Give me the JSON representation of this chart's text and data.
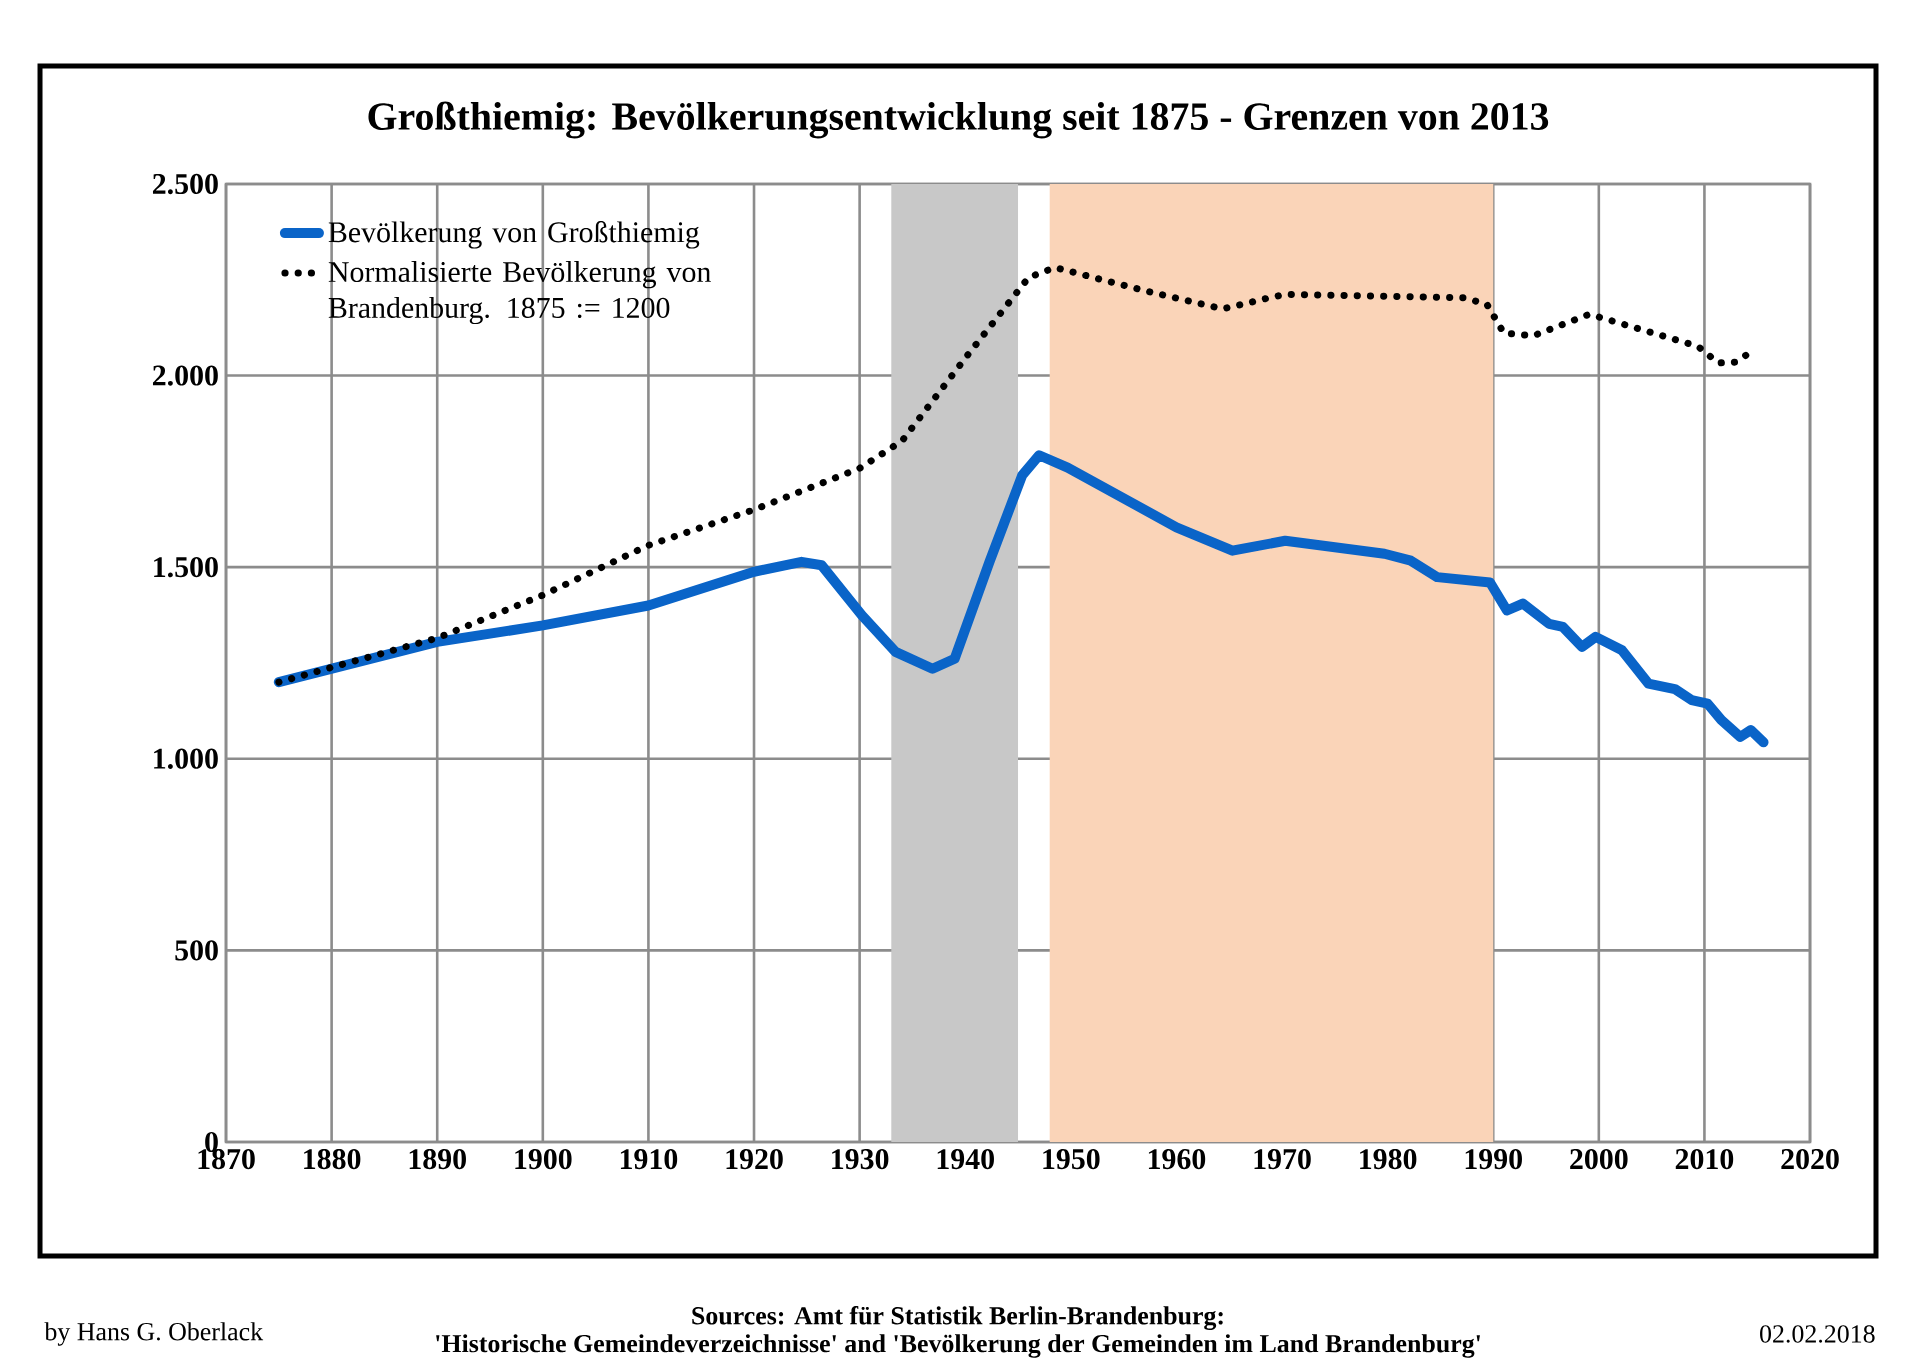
{
  "chart_data": {
    "type": "line",
    "title": "Großthiemig: Bevölkerungsentwicklung seit 1875 - Grenzen von 2013",
    "xlim": [
      1870,
      2020
    ],
    "xticks": [
      1870,
      1880,
      1890,
      1900,
      1910,
      1920,
      1930,
      1940,
      1950,
      1960,
      1970,
      1980,
      1990,
      2000,
      2010,
      2020
    ],
    "ylim": [
      0,
      2500
    ],
    "yticks": [
      {
        "value": 0,
        "label": "0"
      },
      {
        "value": 500,
        "label": "500"
      },
      {
        "value": 1000,
        "label": "1.000"
      },
      {
        "value": 1500,
        "label": "1.500"
      },
      {
        "value": 2000,
        "label": "2.000"
      },
      {
        "value": 2500,
        "label": "2.500"
      }
    ],
    "grid": true,
    "legend": "top left",
    "bands": [
      {
        "axis": "x",
        "from": 1933,
        "to": 1945,
        "color": "#c8c8c8"
      },
      {
        "axis": "x",
        "from": 1948,
        "to": 1990,
        "color": "#fad4b8"
      }
    ],
    "series": [
      {
        "name": "Bevölkerung von Großthiemig",
        "color": "#0a64c8",
        "line_style": "solid",
        "x": [
          1875,
          1890,
          1900,
          1910,
          1920,
          1924.5,
          1926.4,
          1930.2,
          1933.4,
          1936.9,
          1939,
          1942.3,
          1945.4,
          1947,
          1949.7,
          1960,
          1965.3,
          1970.3,
          1979.7,
          1982.2,
          1984.7,
          1989.7,
          1991.3,
          1992.8,
          1995.3,
          1996.6,
          1998.4,
          1999.7,
          2002.2,
          2004.7,
          2007.2,
          2008.8,
          2010.3,
          2011.6,
          2013.4,
          2014.4,
          2015.6
        ],
        "values": [
          1200,
          1305,
          1348,
          1400,
          1488,
          1514,
          1505,
          1375,
          1279,
          1235,
          1261,
          1514,
          1740,
          1792,
          1760,
          1604,
          1543,
          1569,
          1535,
          1517,
          1474,
          1460,
          1387,
          1405,
          1352,
          1344,
          1292,
          1318,
          1283,
          1196,
          1182,
          1153,
          1144,
          1101,
          1057,
          1075,
          1043
        ]
      },
      {
        "name": "Normalisierte Bevölkerung von Brandenburg. 1875 := 1200",
        "color": "#000000",
        "line_style": "dotted",
        "x": [
          1875,
          1890,
          1900,
          1910,
          1920,
          1930,
          1934,
          1940.3,
          1946,
          1948.5,
          1957.2,
          1964.4,
          1968.8,
          1970.3,
          1987.2,
          1989.4,
          1991,
          1993.8,
          1999.1,
          2006.6,
          2009.4,
          2011.3,
          2012.9,
          2014.1
        ],
        "values": [
          1200,
          1315,
          1427,
          1557,
          1650,
          1758,
          1829,
          2056,
          2256,
          2282,
          2220,
          2174,
          2203,
          2212,
          2203,
          2186,
          2111,
          2104,
          2160,
          2099,
          2076,
          2033,
          2035,
          2056
        ]
      }
    ],
    "annotations": [
      "by Hans G. Oberlack",
      "Sources: Amt für Statistik Berlin-Brandenburg:",
      "'Historische Gemeindeverzeichnisse' and 'Bevölkerung der Gemeinden im Land Brandenburg'",
      "02.02.2018"
    ]
  }
}
